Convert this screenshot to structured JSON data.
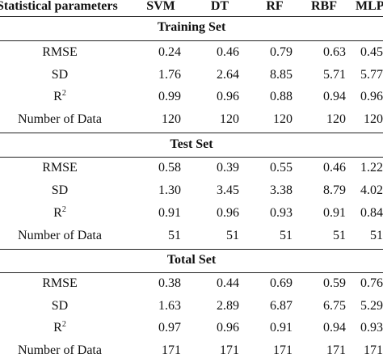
{
  "header": {
    "param": "Statistical parameters",
    "models": [
      "SVM",
      "DT",
      "RF",
      "RBF",
      "MLP"
    ]
  },
  "sections": [
    {
      "title": "Training Set",
      "rows": [
        {
          "label": "RMSE",
          "values": [
            "0.24",
            "0.46",
            "0.79",
            "0.63",
            "0.45"
          ]
        },
        {
          "label": "SD",
          "values": [
            "1.76",
            "2.64",
            "8.85",
            "5.71",
            "5.77"
          ]
        },
        {
          "label": "R",
          "sup": "2",
          "values": [
            "0.99",
            "0.96",
            "0.88",
            "0.94",
            "0.96"
          ]
        },
        {
          "label": "Number of Data",
          "values": [
            "120",
            "120",
            "120",
            "120",
            "120"
          ]
        }
      ]
    },
    {
      "title": "Test Set",
      "rows": [
        {
          "label": "RMSE",
          "values": [
            "0.58",
            "0.39",
            "0.55",
            "0.46",
            "1.22"
          ]
        },
        {
          "label": "SD",
          "values": [
            "1.30",
            "3.45",
            "3.38",
            "8.79",
            "4.02"
          ]
        },
        {
          "label": "R",
          "sup": "2",
          "values": [
            "0.91",
            "0.96",
            "0.93",
            "0.91",
            "0.84"
          ]
        },
        {
          "label": "Number of Data",
          "values": [
            "51",
            "51",
            "51",
            "51",
            "51"
          ]
        }
      ]
    },
    {
      "title": "Total Set",
      "rows": [
        {
          "label": "RMSE",
          "values": [
            "0.38",
            "0.44",
            "0.69",
            "0.59",
            "0.76"
          ]
        },
        {
          "label": "SD",
          "values": [
            "1.63",
            "2.89",
            "6.87",
            "6.75",
            "5.29"
          ]
        },
        {
          "label": "R",
          "sup": "2",
          "values": [
            "0.97",
            "0.96",
            "0.91",
            "0.94",
            "0.93"
          ]
        },
        {
          "label": "Number of Data",
          "values": [
            "171",
            "171",
            "171",
            "171",
            "171"
          ]
        }
      ]
    }
  ]
}
